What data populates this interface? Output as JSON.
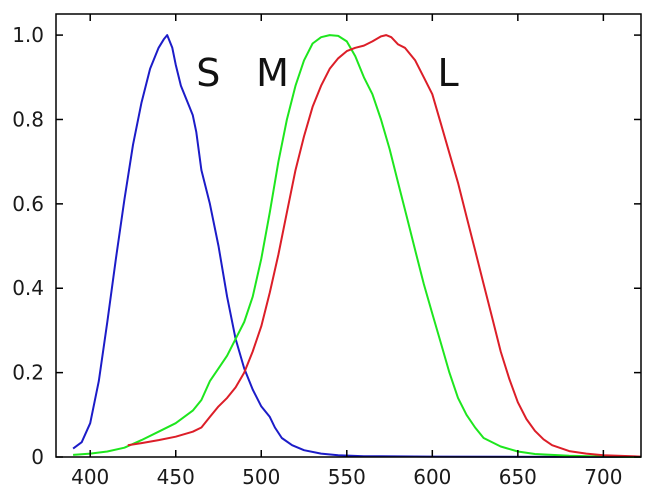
{
  "chart_data": {
    "type": "line",
    "xlim": [
      380,
      722
    ],
    "ylim": [
      0,
      1.05
    ],
    "grid": false,
    "x_ticks": [
      400,
      450,
      500,
      550,
      600,
      650,
      700
    ],
    "y_ticks": [
      0,
      0.2,
      0.4,
      0.6,
      0.8,
      1.0
    ],
    "x_tick_labels": [
      "400",
      "450",
      "500",
      "550",
      "600",
      "650",
      "700"
    ],
    "y_tick_labels": [
      "0",
      "0.2",
      "0.4",
      "0.6",
      "0.8",
      "1.0"
    ],
    "annotations": [
      {
        "text": "S",
        "x": 462,
        "y": 0.91
      },
      {
        "text": "M",
        "x": 497,
        "y": 0.91
      },
      {
        "text": "L",
        "x": 603,
        "y": 0.91
      }
    ],
    "series": [
      {
        "name": "S",
        "color": "#1c1cc8",
        "points": [
          [
            390,
            0.02
          ],
          [
            395,
            0.035
          ],
          [
            400,
            0.08
          ],
          [
            405,
            0.18
          ],
          [
            410,
            0.32
          ],
          [
            415,
            0.47
          ],
          [
            420,
            0.61
          ],
          [
            425,
            0.74
          ],
          [
            430,
            0.84
          ],
          [
            435,
            0.92
          ],
          [
            440,
            0.97
          ],
          [
            443,
            0.99
          ],
          [
            445,
            1.0
          ],
          [
            448,
            0.97
          ],
          [
            450,
            0.93
          ],
          [
            453,
            0.88
          ],
          [
            456,
            0.85
          ],
          [
            458,
            0.83
          ],
          [
            460,
            0.81
          ],
          [
            462,
            0.77
          ],
          [
            465,
            0.68
          ],
          [
            470,
            0.6
          ],
          [
            475,
            0.5
          ],
          [
            480,
            0.38
          ],
          [
            485,
            0.28
          ],
          [
            490,
            0.21
          ],
          [
            495,
            0.16
          ],
          [
            500,
            0.12
          ],
          [
            505,
            0.095
          ],
          [
            508,
            0.07
          ],
          [
            512,
            0.045
          ],
          [
            518,
            0.028
          ],
          [
            525,
            0.016
          ],
          [
            535,
            0.008
          ],
          [
            545,
            0.004
          ],
          [
            560,
            0.002
          ],
          [
            600,
            0.001
          ],
          [
            722,
            0.0
          ]
        ]
      },
      {
        "name": "M",
        "color": "#1ee61e",
        "points": [
          [
            390,
            0.005
          ],
          [
            400,
            0.008
          ],
          [
            410,
            0.013
          ],
          [
            420,
            0.022
          ],
          [
            430,
            0.04
          ],
          [
            440,
            0.06
          ],
          [
            450,
            0.08
          ],
          [
            460,
            0.11
          ],
          [
            465,
            0.135
          ],
          [
            470,
            0.18
          ],
          [
            475,
            0.21
          ],
          [
            480,
            0.24
          ],
          [
            485,
            0.28
          ],
          [
            490,
            0.32
          ],
          [
            495,
            0.38
          ],
          [
            500,
            0.47
          ],
          [
            505,
            0.58
          ],
          [
            510,
            0.7
          ],
          [
            515,
            0.8
          ],
          [
            520,
            0.88
          ],
          [
            525,
            0.94
          ],
          [
            530,
            0.98
          ],
          [
            535,
            0.995
          ],
          [
            540,
            1.0
          ],
          [
            545,
            0.998
          ],
          [
            550,
            0.985
          ],
          [
            555,
            0.95
          ],
          [
            560,
            0.9
          ],
          [
            565,
            0.86
          ],
          [
            570,
            0.8
          ],
          [
            575,
            0.73
          ],
          [
            580,
            0.65
          ],
          [
            585,
            0.57
          ],
          [
            590,
            0.49
          ],
          [
            595,
            0.41
          ],
          [
            600,
            0.34
          ],
          [
            605,
            0.27
          ],
          [
            610,
            0.2
          ],
          [
            615,
            0.14
          ],
          [
            620,
            0.1
          ],
          [
            625,
            0.07
          ],
          [
            630,
            0.045
          ],
          [
            640,
            0.025
          ],
          [
            650,
            0.013
          ],
          [
            660,
            0.007
          ],
          [
            680,
            0.003
          ],
          [
            700,
            0.001
          ],
          [
            722,
            0.0
          ]
        ]
      },
      {
        "name": "L",
        "color": "#dc1e28",
        "points": [
          [
            422,
            0.028
          ],
          [
            430,
            0.033
          ],
          [
            440,
            0.04
          ],
          [
            450,
            0.048
          ],
          [
            460,
            0.06
          ],
          [
            465,
            0.07
          ],
          [
            470,
            0.095
          ],
          [
            475,
            0.12
          ],
          [
            480,
            0.14
          ],
          [
            485,
            0.165
          ],
          [
            490,
            0.2
          ],
          [
            495,
            0.25
          ],
          [
            500,
            0.31
          ],
          [
            505,
            0.39
          ],
          [
            510,
            0.48
          ],
          [
            515,
            0.58
          ],
          [
            520,
            0.68
          ],
          [
            525,
            0.76
          ],
          [
            530,
            0.83
          ],
          [
            535,
            0.88
          ],
          [
            540,
            0.92
          ],
          [
            545,
            0.945
          ],
          [
            550,
            0.962
          ],
          [
            555,
            0.97
          ],
          [
            560,
            0.975
          ],
          [
            565,
            0.985
          ],
          [
            570,
            0.997
          ],
          [
            573,
            1.0
          ],
          [
            576,
            0.995
          ],
          [
            580,
            0.978
          ],
          [
            584,
            0.97
          ],
          [
            590,
            0.94
          ],
          [
            595,
            0.9
          ],
          [
            600,
            0.86
          ],
          [
            605,
            0.79
          ],
          [
            610,
            0.72
          ],
          [
            615,
            0.65
          ],
          [
            620,
            0.57
          ],
          [
            625,
            0.49
          ],
          [
            630,
            0.41
          ],
          [
            635,
            0.33
          ],
          [
            640,
            0.25
          ],
          [
            645,
            0.185
          ],
          [
            650,
            0.13
          ],
          [
            655,
            0.09
          ],
          [
            660,
            0.062
          ],
          [
            665,
            0.042
          ],
          [
            670,
            0.028
          ],
          [
            680,
            0.014
          ],
          [
            690,
            0.008
          ],
          [
            700,
            0.004
          ],
          [
            722,
            0.001
          ]
        ]
      }
    ]
  }
}
